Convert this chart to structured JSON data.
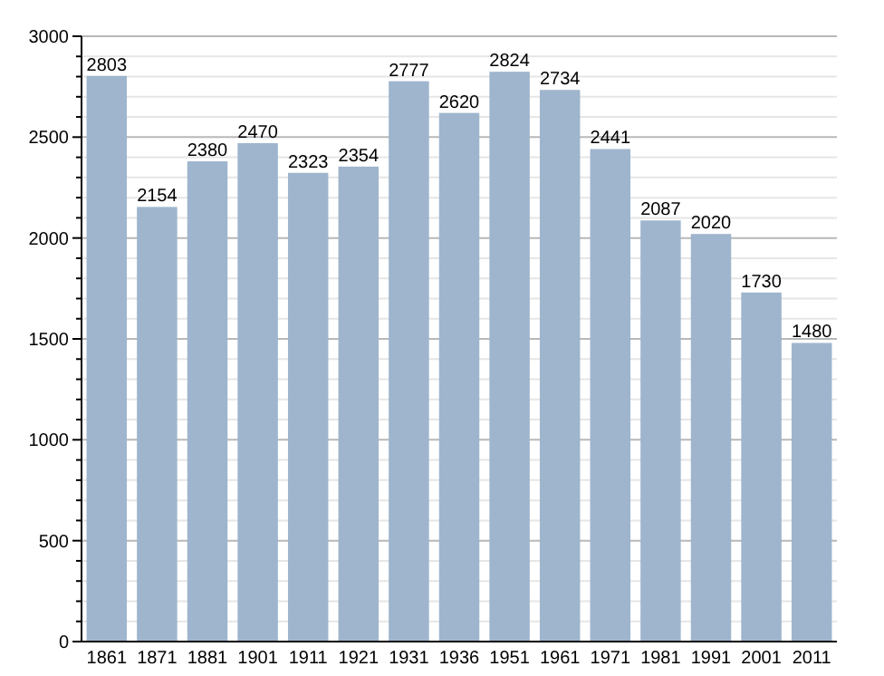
{
  "chart_data": {
    "type": "bar",
    "categories": [
      "1861",
      "1871",
      "1881",
      "1901",
      "1911",
      "1921",
      "1931",
      "1936",
      "1951",
      "1961",
      "1971",
      "1981",
      "1991",
      "2001",
      "2011"
    ],
    "values": [
      2803,
      2154,
      2380,
      2470,
      2323,
      2354,
      2777,
      2620,
      2824,
      2734,
      2441,
      2087,
      2020,
      1730,
      1480
    ],
    "color": "#9eb5cd",
    "ylim": [
      0,
      3000
    ],
    "yticks": [
      0,
      {
        "value": 100,
        "label": null
      },
      {
        "value": 200,
        "label": null
      },
      {
        "value": 300,
        "label": null
      },
      {
        "value": 400,
        "label": null
      },
      500,
      {
        "value": 600,
        "label": null
      },
      {
        "value": 700,
        "label": null
      },
      {
        "value": 800,
        "label": null
      },
      {
        "value": 900,
        "label": null
      },
      1000,
      {
        "value": 1100,
        "label": null
      },
      {
        "value": 1200,
        "label": null
      },
      {
        "value": 1300,
        "label": null
      },
      {
        "value": 1400,
        "label": null
      },
      1500,
      {
        "value": 1600,
        "label": null
      },
      {
        "value": 1700,
        "label": null
      },
      {
        "value": 1800,
        "label": null
      },
      {
        "value": 1900,
        "label": null
      },
      2000,
      {
        "value": 2100,
        "label": null
      },
      {
        "value": 2200,
        "label": null
      },
      {
        "value": 2300,
        "label": null
      },
      {
        "value": 2400,
        "label": null
      },
      2500,
      {
        "value": 2600,
        "label": null
      },
      {
        "value": 2700,
        "label": null
      },
      {
        "value": 2800,
        "label": null
      },
      {
        "value": 2900,
        "label": null
      },
      3000
    ],
    "grid": "y",
    "data_labels": true
  }
}
